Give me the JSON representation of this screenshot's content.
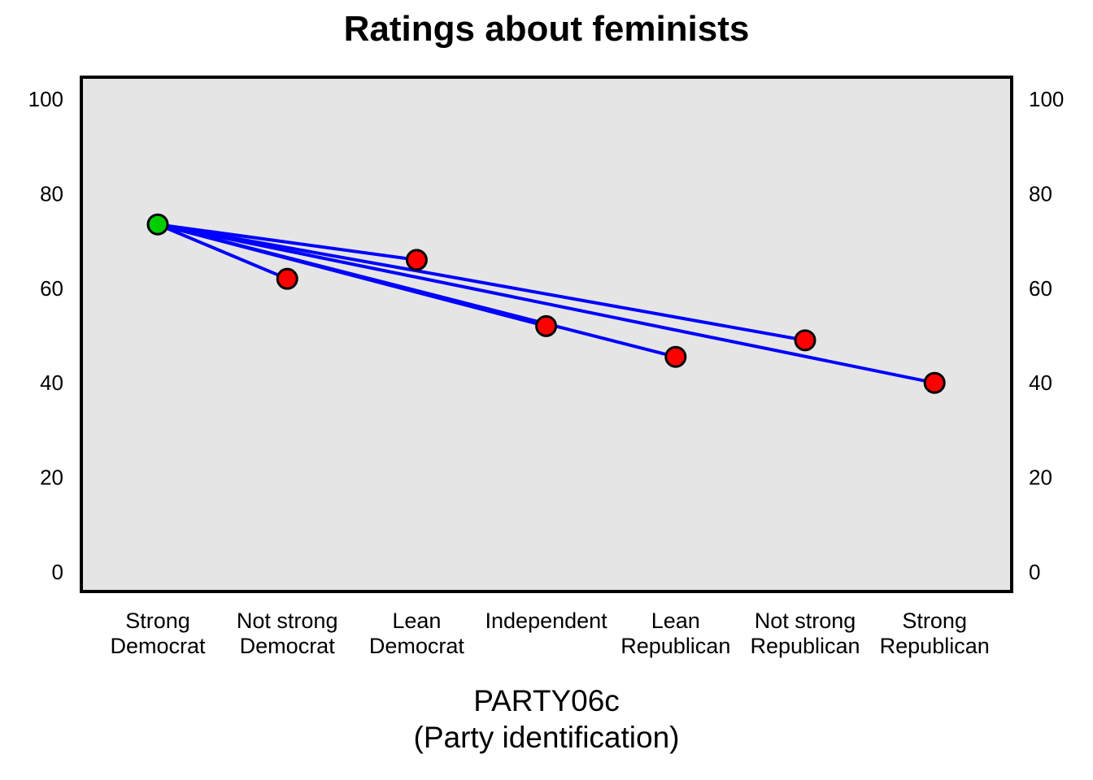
{
  "chart_data": {
    "type": "line",
    "title": "Ratings about feminists",
    "xlabel": "PARTY06c",
    "xlabel_sub": "(Party identification)",
    "ylabel": "",
    "ylim": [
      -4,
      105
    ],
    "yticks": [
      0,
      20,
      40,
      60,
      80,
      100
    ],
    "ytick_labels": [
      "0",
      "20",
      "40",
      "60",
      "80",
      "100"
    ],
    "grid": false,
    "plot_background": "#e5e5e5",
    "categories": [
      {
        "line1": "Strong",
        "line2": "Democrat"
      },
      {
        "line1": "Not strong",
        "line2": "Democrat"
      },
      {
        "line1": "Lean",
        "line2": "Democrat"
      },
      {
        "line1": "Independent",
        "line2": ""
      },
      {
        "line1": "Lean",
        "line2": "Republican"
      },
      {
        "line1": "Not strong",
        "line2": "Republican"
      },
      {
        "line1": "Strong",
        "line2": "Republican"
      }
    ],
    "reference": {
      "category_index": 0,
      "value": 73.5,
      "color": "#00cc00"
    },
    "points": [
      {
        "category_index": 1,
        "value": 62,
        "color": "#ff0000"
      },
      {
        "category_index": 2,
        "value": 66,
        "color": "#ff0000"
      },
      {
        "category_index": 3,
        "value": 52,
        "color": "#ff0000"
      },
      {
        "category_index": 4,
        "value": 45.5,
        "color": "#ff0000"
      },
      {
        "category_index": 5,
        "value": 49,
        "color": "#ff0000"
      },
      {
        "category_index": 6,
        "value": 40,
        "color": "#ff0000"
      }
    ],
    "line_color": "#0000ff"
  }
}
